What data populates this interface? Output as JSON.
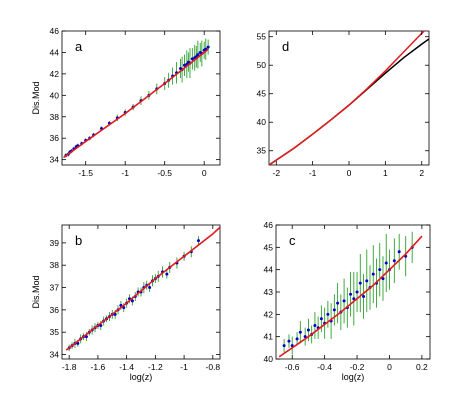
{
  "chart_data": [
    {
      "panel": "a",
      "type": "scatter",
      "xlabel": "",
      "ylabel": "Dis.Mod",
      "xlim": [
        -1.8,
        0.2
      ],
      "ylim": [
        33.5,
        46
      ],
      "xticks": [
        -1.5,
        -1,
        -0.5,
        0
      ],
      "xtick_labels": [
        "-1.5",
        "-1",
        "-0.5",
        "0"
      ],
      "yticks": [
        34,
        36,
        38,
        40,
        42,
        44,
        46
      ],
      "ytick_labels": [
        "34",
        "36",
        "38",
        "40",
        "42",
        "44",
        "46"
      ],
      "grid": false,
      "line_colors": [
        "#e41a1c",
        "#0000c8"
      ],
      "model_lines": [
        {
          "x": [
            -1.78,
            -1.5,
            -1.0,
            -0.5,
            0.0,
            0.05
          ],
          "y": [
            34.2,
            35.7,
            38.3,
            41.1,
            44.0,
            44.3
          ]
        }
      ],
      "data_points": {
        "color": "#0000c8",
        "error_color": "#2ca02c",
        "x": [
          -1.75,
          -1.72,
          -1.7,
          -1.68,
          -1.65,
          -1.62,
          -1.6,
          -1.55,
          -1.5,
          -1.45,
          -1.4,
          -1.3,
          -1.2,
          -1.1,
          -1.0,
          -0.9,
          -0.8,
          -0.7,
          -0.6,
          -0.5,
          -0.45,
          -0.4,
          -0.35,
          -0.3,
          -0.28,
          -0.25,
          -0.22,
          -0.2,
          -0.18,
          -0.15,
          -0.12,
          -0.1,
          -0.08,
          -0.05,
          -0.03,
          0.0,
          0.02,
          0.05
        ],
        "y": [
          34.4,
          34.5,
          34.7,
          34.8,
          35.0,
          35.2,
          35.3,
          35.5,
          35.8,
          36.0,
          36.3,
          36.9,
          37.4,
          37.9,
          38.4,
          38.9,
          39.5,
          40.0,
          40.6,
          41.1,
          41.4,
          41.8,
          42.1,
          42.5,
          42.4,
          42.8,
          42.9,
          43.1,
          43.0,
          43.4,
          43.5,
          43.6,
          43.8,
          44.0,
          43.9,
          44.2,
          44.3,
          44.5
        ],
        "err": [
          0.2,
          0.2,
          0.2,
          0.2,
          0.2,
          0.2,
          0.2,
          0.2,
          0.2,
          0.2,
          0.2,
          0.2,
          0.2,
          0.3,
          0.3,
          0.3,
          0.4,
          0.4,
          0.5,
          0.6,
          0.7,
          0.8,
          1.0,
          0.9,
          1.2,
          1.0,
          1.3,
          0.9,
          1.4,
          1.0,
          1.2,
          1.0,
          1.3,
          0.9,
          1.2,
          0.8,
          1.0,
          0.7
        ]
      }
    },
    {
      "panel": "d",
      "type": "line",
      "xlabel": "",
      "ylabel": "",
      "xlim": [
        -2.2,
        2.2
      ],
      "ylim": [
        32.5,
        56
      ],
      "xticks": [
        -2,
        -1,
        0,
        1,
        2
      ],
      "xtick_labels": [
        "-2",
        "-1",
        "0",
        "1",
        "2"
      ],
      "yticks": [
        35,
        40,
        45,
        50,
        55
      ],
      "ytick_labels": [
        "35",
        "40",
        "45",
        "50",
        "55"
      ],
      "grid": false,
      "line_colors": [
        "#000000",
        "#e41a1c"
      ],
      "series": [
        {
          "x": [
            -2.2,
            -1.5,
            -1.0,
            -0.5,
            0.0,
            0.5,
            1.0,
            1.5,
            2.0,
            2.2
          ],
          "y": [
            32.5,
            35.5,
            37.9,
            40.4,
            43.0,
            45.8,
            48.6,
            51.3,
            53.7,
            54.6
          ]
        },
        {
          "x": [
            -2.2,
            -1.5,
            -1.0,
            -0.5,
            0.0,
            0.5,
            1.0,
            1.5,
            2.0,
            2.2
          ],
          "y": [
            32.5,
            35.5,
            37.9,
            40.4,
            43.0,
            45.9,
            49.0,
            52.3,
            55.6,
            56.8
          ]
        }
      ]
    },
    {
      "panel": "b",
      "type": "scatter",
      "xlabel": "log(z)",
      "ylabel": "Dis.Mod",
      "xlim": [
        -1.85,
        -0.75
      ],
      "ylim": [
        33.8,
        39.8
      ],
      "xticks": [
        -1.8,
        -1.6,
        -1.4,
        -1.2,
        -1,
        -0.8
      ],
      "xtick_labels": [
        "-1.8",
        "-1.6",
        "-1.4",
        "-1.2",
        "-1",
        "-0.8"
      ],
      "yticks": [
        34,
        35,
        36,
        37,
        38,
        39
      ],
      "ytick_labels": [
        "34",
        "35",
        "36",
        "37",
        "38",
        "39"
      ],
      "grid": false,
      "line_colors": [
        "#e41a1c",
        "#0000c8"
      ],
      "model_lines": [
        {
          "x": [
            -1.82,
            -1.6,
            -1.4,
            -1.2,
            -1.0,
            -0.8,
            -0.75
          ],
          "y": [
            34.2,
            35.3,
            36.3,
            37.4,
            38.4,
            39.4,
            39.7
          ]
        }
      ],
      "data_points": {
        "color": "#0000c8",
        "error_color": "#2ca02c",
        "x": [
          -1.8,
          -1.78,
          -1.76,
          -1.74,
          -1.72,
          -1.7,
          -1.68,
          -1.66,
          -1.64,
          -1.62,
          -1.6,
          -1.58,
          -1.56,
          -1.54,
          -1.52,
          -1.5,
          -1.48,
          -1.46,
          -1.44,
          -1.42,
          -1.4,
          -1.38,
          -1.36,
          -1.34,
          -1.32,
          -1.3,
          -1.28,
          -1.26,
          -1.24,
          -1.22,
          -1.2,
          -1.18,
          -1.15,
          -1.12,
          -1.1,
          -1.05,
          -1.0,
          -0.95,
          -0.9
        ],
        "y": [
          34.3,
          34.4,
          34.5,
          34.5,
          34.7,
          34.8,
          34.8,
          35.0,
          35.1,
          35.2,
          35.3,
          35.3,
          35.5,
          35.6,
          35.7,
          35.8,
          35.8,
          36.0,
          36.2,
          36.1,
          36.3,
          36.5,
          36.4,
          36.6,
          36.8,
          36.8,
          37.0,
          37.1,
          37.0,
          37.3,
          37.4,
          37.5,
          37.7,
          37.6,
          37.9,
          38.1,
          38.4,
          38.6,
          39.1
        ],
        "err": [
          0.15,
          0.15,
          0.2,
          0.15,
          0.2,
          0.15,
          0.2,
          0.15,
          0.2,
          0.2,
          0.15,
          0.2,
          0.2,
          0.15,
          0.2,
          0.2,
          0.2,
          0.2,
          0.2,
          0.2,
          0.2,
          0.2,
          0.2,
          0.2,
          0.2,
          0.2,
          0.25,
          0.2,
          0.2,
          0.25,
          0.2,
          0.25,
          0.25,
          0.2,
          0.25,
          0.25,
          0.2,
          0.25,
          0.2
        ]
      }
    },
    {
      "panel": "c",
      "type": "scatter",
      "xlabel": "log(z)",
      "ylabel": "",
      "xlim": [
        -0.7,
        0.25
      ],
      "ylim": [
        40,
        46
      ],
      "xticks": [
        -0.6,
        -0.4,
        -0.2,
        0,
        0.2
      ],
      "xtick_labels": [
        "-0.6",
        "-0.4",
        "-0.2",
        "0",
        "0.2"
      ],
      "yticks": [
        40,
        41,
        42,
        43,
        44,
        45,
        46
      ],
      "ytick_labels": [
        "40",
        "41",
        "42",
        "43",
        "44",
        "45",
        "46"
      ],
      "grid": false,
      "line_colors": [
        "#e41a1c",
        "#0000c8"
      ],
      "model_lines": [
        {
          "x": [
            -0.68,
            -0.5,
            -0.3,
            -0.1,
            0.1,
            0.2
          ],
          "y": [
            40.1,
            41.0,
            42.1,
            43.3,
            44.7,
            45.5
          ]
        }
      ],
      "data_points": {
        "color": "#0000c8",
        "error_color": "#2ca02c",
        "x": [
          -0.65,
          -0.62,
          -0.6,
          -0.57,
          -0.55,
          -0.52,
          -0.5,
          -0.48,
          -0.46,
          -0.44,
          -0.42,
          -0.4,
          -0.38,
          -0.36,
          -0.34,
          -0.32,
          -0.3,
          -0.28,
          -0.26,
          -0.24,
          -0.22,
          -0.2,
          -0.18,
          -0.16,
          -0.14,
          -0.12,
          -0.1,
          -0.08,
          -0.06,
          -0.04,
          -0.02,
          0.0,
          0.03,
          0.06,
          0.1,
          0.14
        ],
        "y": [
          40.6,
          40.8,
          40.6,
          40.9,
          41.2,
          41.0,
          41.3,
          41.1,
          41.5,
          41.4,
          41.8,
          41.6,
          42.0,
          41.7,
          42.2,
          42.5,
          42.1,
          42.6,
          42.3,
          42.9,
          42.7,
          43.0,
          43.4,
          42.8,
          43.5,
          43.2,
          43.8,
          43.4,
          44.0,
          43.6,
          44.3,
          44.0,
          44.4,
          44.8,
          44.6,
          45.0
        ],
        "err": [
          0.3,
          0.3,
          0.4,
          0.3,
          0.5,
          0.4,
          0.5,
          0.4,
          0.6,
          0.5,
          0.6,
          0.7,
          0.6,
          0.8,
          0.7,
          0.9,
          0.8,
          1.0,
          0.9,
          1.0,
          1.2,
          0.9,
          1.3,
          1.0,
          1.4,
          1.0,
          1.3,
          1.1,
          1.2,
          1.0,
          1.3,
          0.9,
          1.0,
          0.8,
          0.9,
          0.7
        ]
      }
    }
  ]
}
